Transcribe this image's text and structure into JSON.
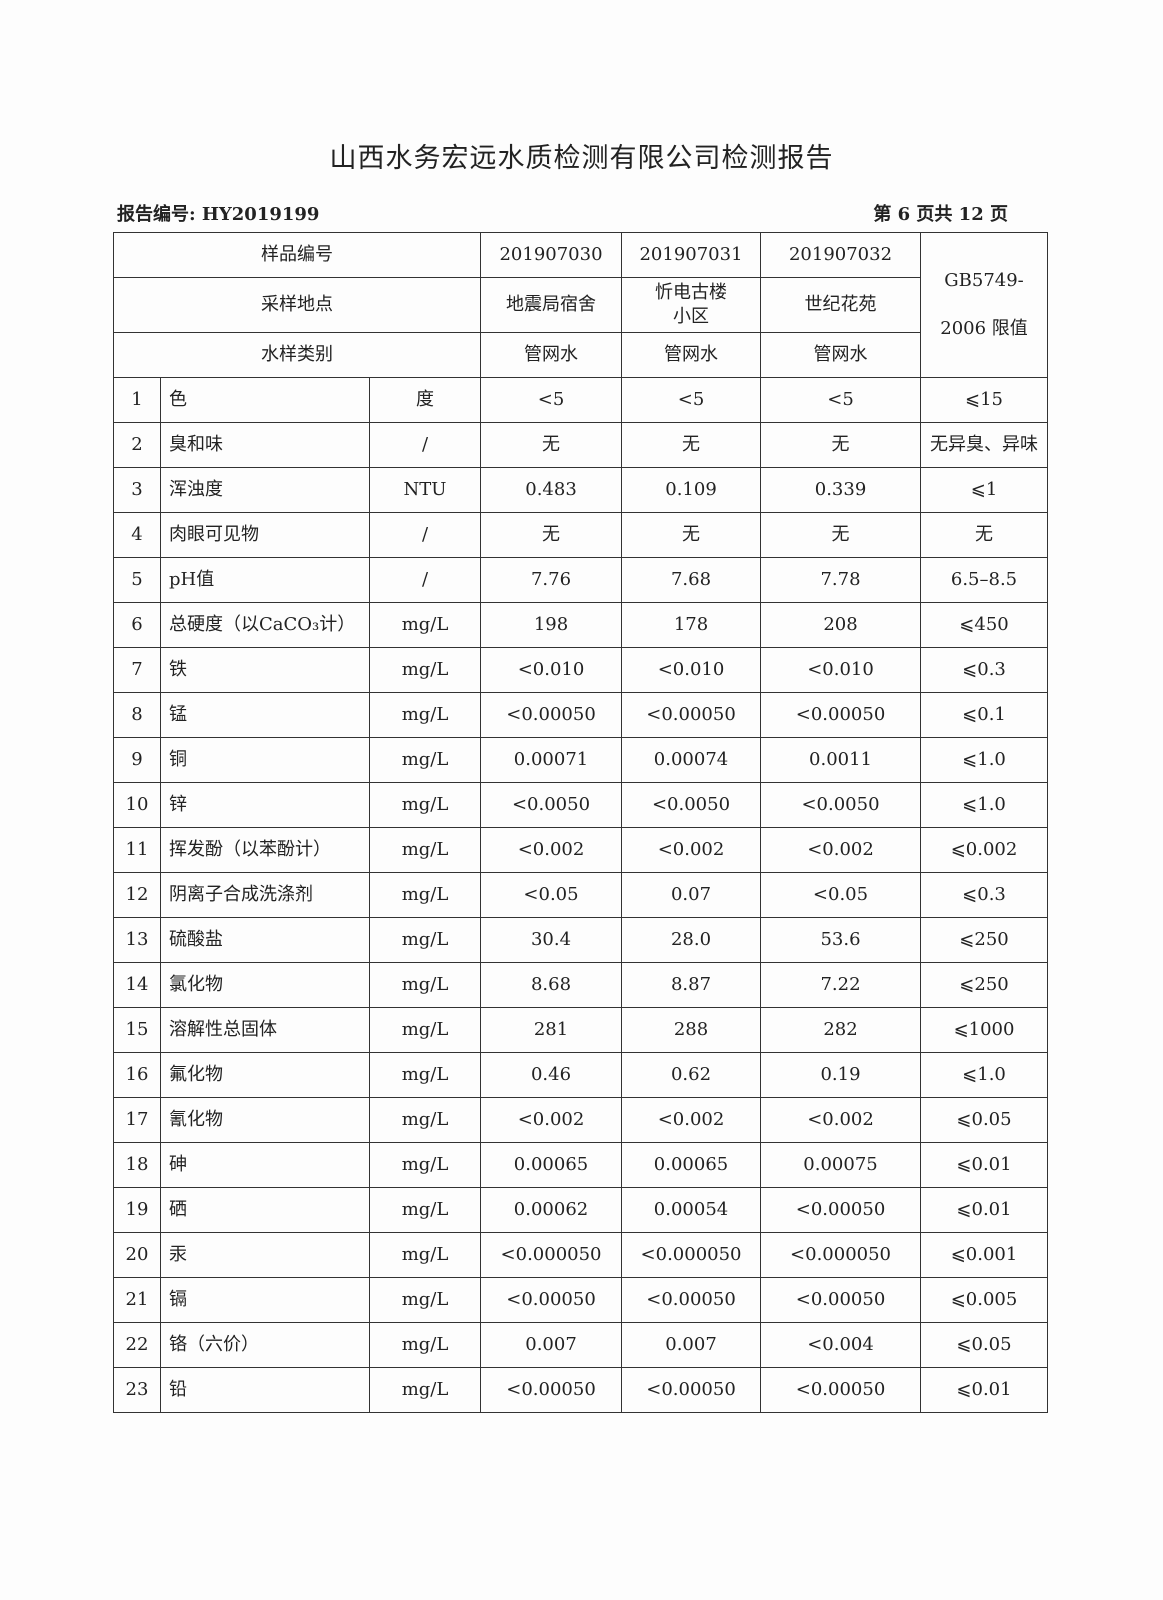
{
  "title": "山西水务宏远水质检测有限公司检测报告",
  "report_no": "报告编号: HY2019199",
  "page_no": "第 6 页共 12 页",
  "header": {
    "sample_no_label": "样品编号",
    "location_label": "采样地点",
    "type_label": "水样类别",
    "standard_label_1": "GB5749-",
    "standard_label_2": "2006 限值",
    "samples": [
      {
        "no": "201907030",
        "location": "地震局宿舍",
        "type": "管网水"
      },
      {
        "no": "201907031",
        "location": "忻电古楼小区",
        "type": "管网水"
      },
      {
        "no": "201907032",
        "location": "世纪花苑",
        "type": "管网水"
      }
    ]
  },
  "rows": [
    {
      "no": "1",
      "name": "色",
      "unit": "度",
      "v": [
        "<5",
        "<5",
        "<5"
      ],
      "limit": "⩽15"
    },
    {
      "no": "2",
      "name": "臭和味",
      "unit": "/",
      "v": [
        "无",
        "无",
        "无"
      ],
      "limit": "无异臭、异味"
    },
    {
      "no": "3",
      "name": "浑浊度",
      "unit": "NTU",
      "v": [
        "0.483",
        "0.109",
        "0.339"
      ],
      "limit": "⩽1"
    },
    {
      "no": "4",
      "name": "肉眼可见物",
      "unit": "/",
      "v": [
        "无",
        "无",
        "无"
      ],
      "limit": "无"
    },
    {
      "no": "5",
      "name": "pH值",
      "unit": "/",
      "v": [
        "7.76",
        "7.68",
        "7.78"
      ],
      "limit": "6.5–8.5"
    },
    {
      "no": "6",
      "name": "总硬度（以CaCO₃计）",
      "unit": "mg/L",
      "v": [
        "198",
        "178",
        "208"
      ],
      "limit": "⩽450"
    },
    {
      "no": "7",
      "name": "铁",
      "unit": "mg/L",
      "v": [
        "<0.010",
        "<0.010",
        "<0.010"
      ],
      "limit": "⩽0.3"
    },
    {
      "no": "8",
      "name": "锰",
      "unit": "mg/L",
      "v": [
        "<0.00050",
        "<0.00050",
        "<0.00050"
      ],
      "limit": "⩽0.1"
    },
    {
      "no": "9",
      "name": "铜",
      "unit": "mg/L",
      "v": [
        "0.00071",
        "0.00074",
        "0.0011"
      ],
      "limit": "⩽1.0"
    },
    {
      "no": "10",
      "name": "锌",
      "unit": "mg/L",
      "v": [
        "<0.0050",
        "<0.0050",
        "<0.0050"
      ],
      "limit": "⩽1.0"
    },
    {
      "no": "11",
      "name": "挥发酚（以苯酚计）",
      "unit": "mg/L",
      "v": [
        "<0.002",
        "<0.002",
        "<0.002"
      ],
      "limit": "⩽0.002"
    },
    {
      "no": "12",
      "name": "阴离子合成洗涤剂",
      "unit": "mg/L",
      "v": [
        "<0.05",
        "0.07",
        "<0.05"
      ],
      "limit": "⩽0.3"
    },
    {
      "no": "13",
      "name": "硫酸盐",
      "unit": "mg/L",
      "v": [
        "30.4",
        "28.0",
        "53.6"
      ],
      "limit": "⩽250"
    },
    {
      "no": "14",
      "name": "氯化物",
      "unit": "mg/L",
      "v": [
        "8.68",
        "8.87",
        "7.22"
      ],
      "limit": "⩽250"
    },
    {
      "no": "15",
      "name": "溶解性总固体",
      "unit": "mg/L",
      "v": [
        "281",
        "288",
        "282"
      ],
      "limit": "⩽1000"
    },
    {
      "no": "16",
      "name": "氟化物",
      "unit": "mg/L",
      "v": [
        "0.46",
        "0.62",
        "0.19"
      ],
      "limit": "⩽1.0"
    },
    {
      "no": "17",
      "name": "氰化物",
      "unit": "mg/L",
      "v": [
        "<0.002",
        "<0.002",
        "<0.002"
      ],
      "limit": "⩽0.05"
    },
    {
      "no": "18",
      "name": "砷",
      "unit": "mg/L",
      "v": [
        "0.00065",
        "0.00065",
        "0.00075"
      ],
      "limit": "⩽0.01"
    },
    {
      "no": "19",
      "name": "硒",
      "unit": "mg/L",
      "v": [
        "0.00062",
        "0.00054",
        "<0.00050"
      ],
      "limit": "⩽0.01"
    },
    {
      "no": "20",
      "name": "汞",
      "unit": "mg/L",
      "v": [
        "<0.000050",
        "<0.000050",
        "<0.000050"
      ],
      "limit": "⩽0.001"
    },
    {
      "no": "21",
      "name": "镉",
      "unit": "mg/L",
      "v": [
        "<0.00050",
        "<0.00050",
        "<0.00050"
      ],
      "limit": "⩽0.005"
    },
    {
      "no": "22",
      "name": "铬（六价）",
      "unit": "mg/L",
      "v": [
        "0.007",
        "0.007",
        "<0.004"
      ],
      "limit": "⩽0.05"
    },
    {
      "no": "23",
      "name": "铅",
      "unit": "mg/L",
      "v": [
        "<0.00050",
        "<0.00050",
        "<0.00050"
      ],
      "limit": "⩽0.01"
    }
  ]
}
